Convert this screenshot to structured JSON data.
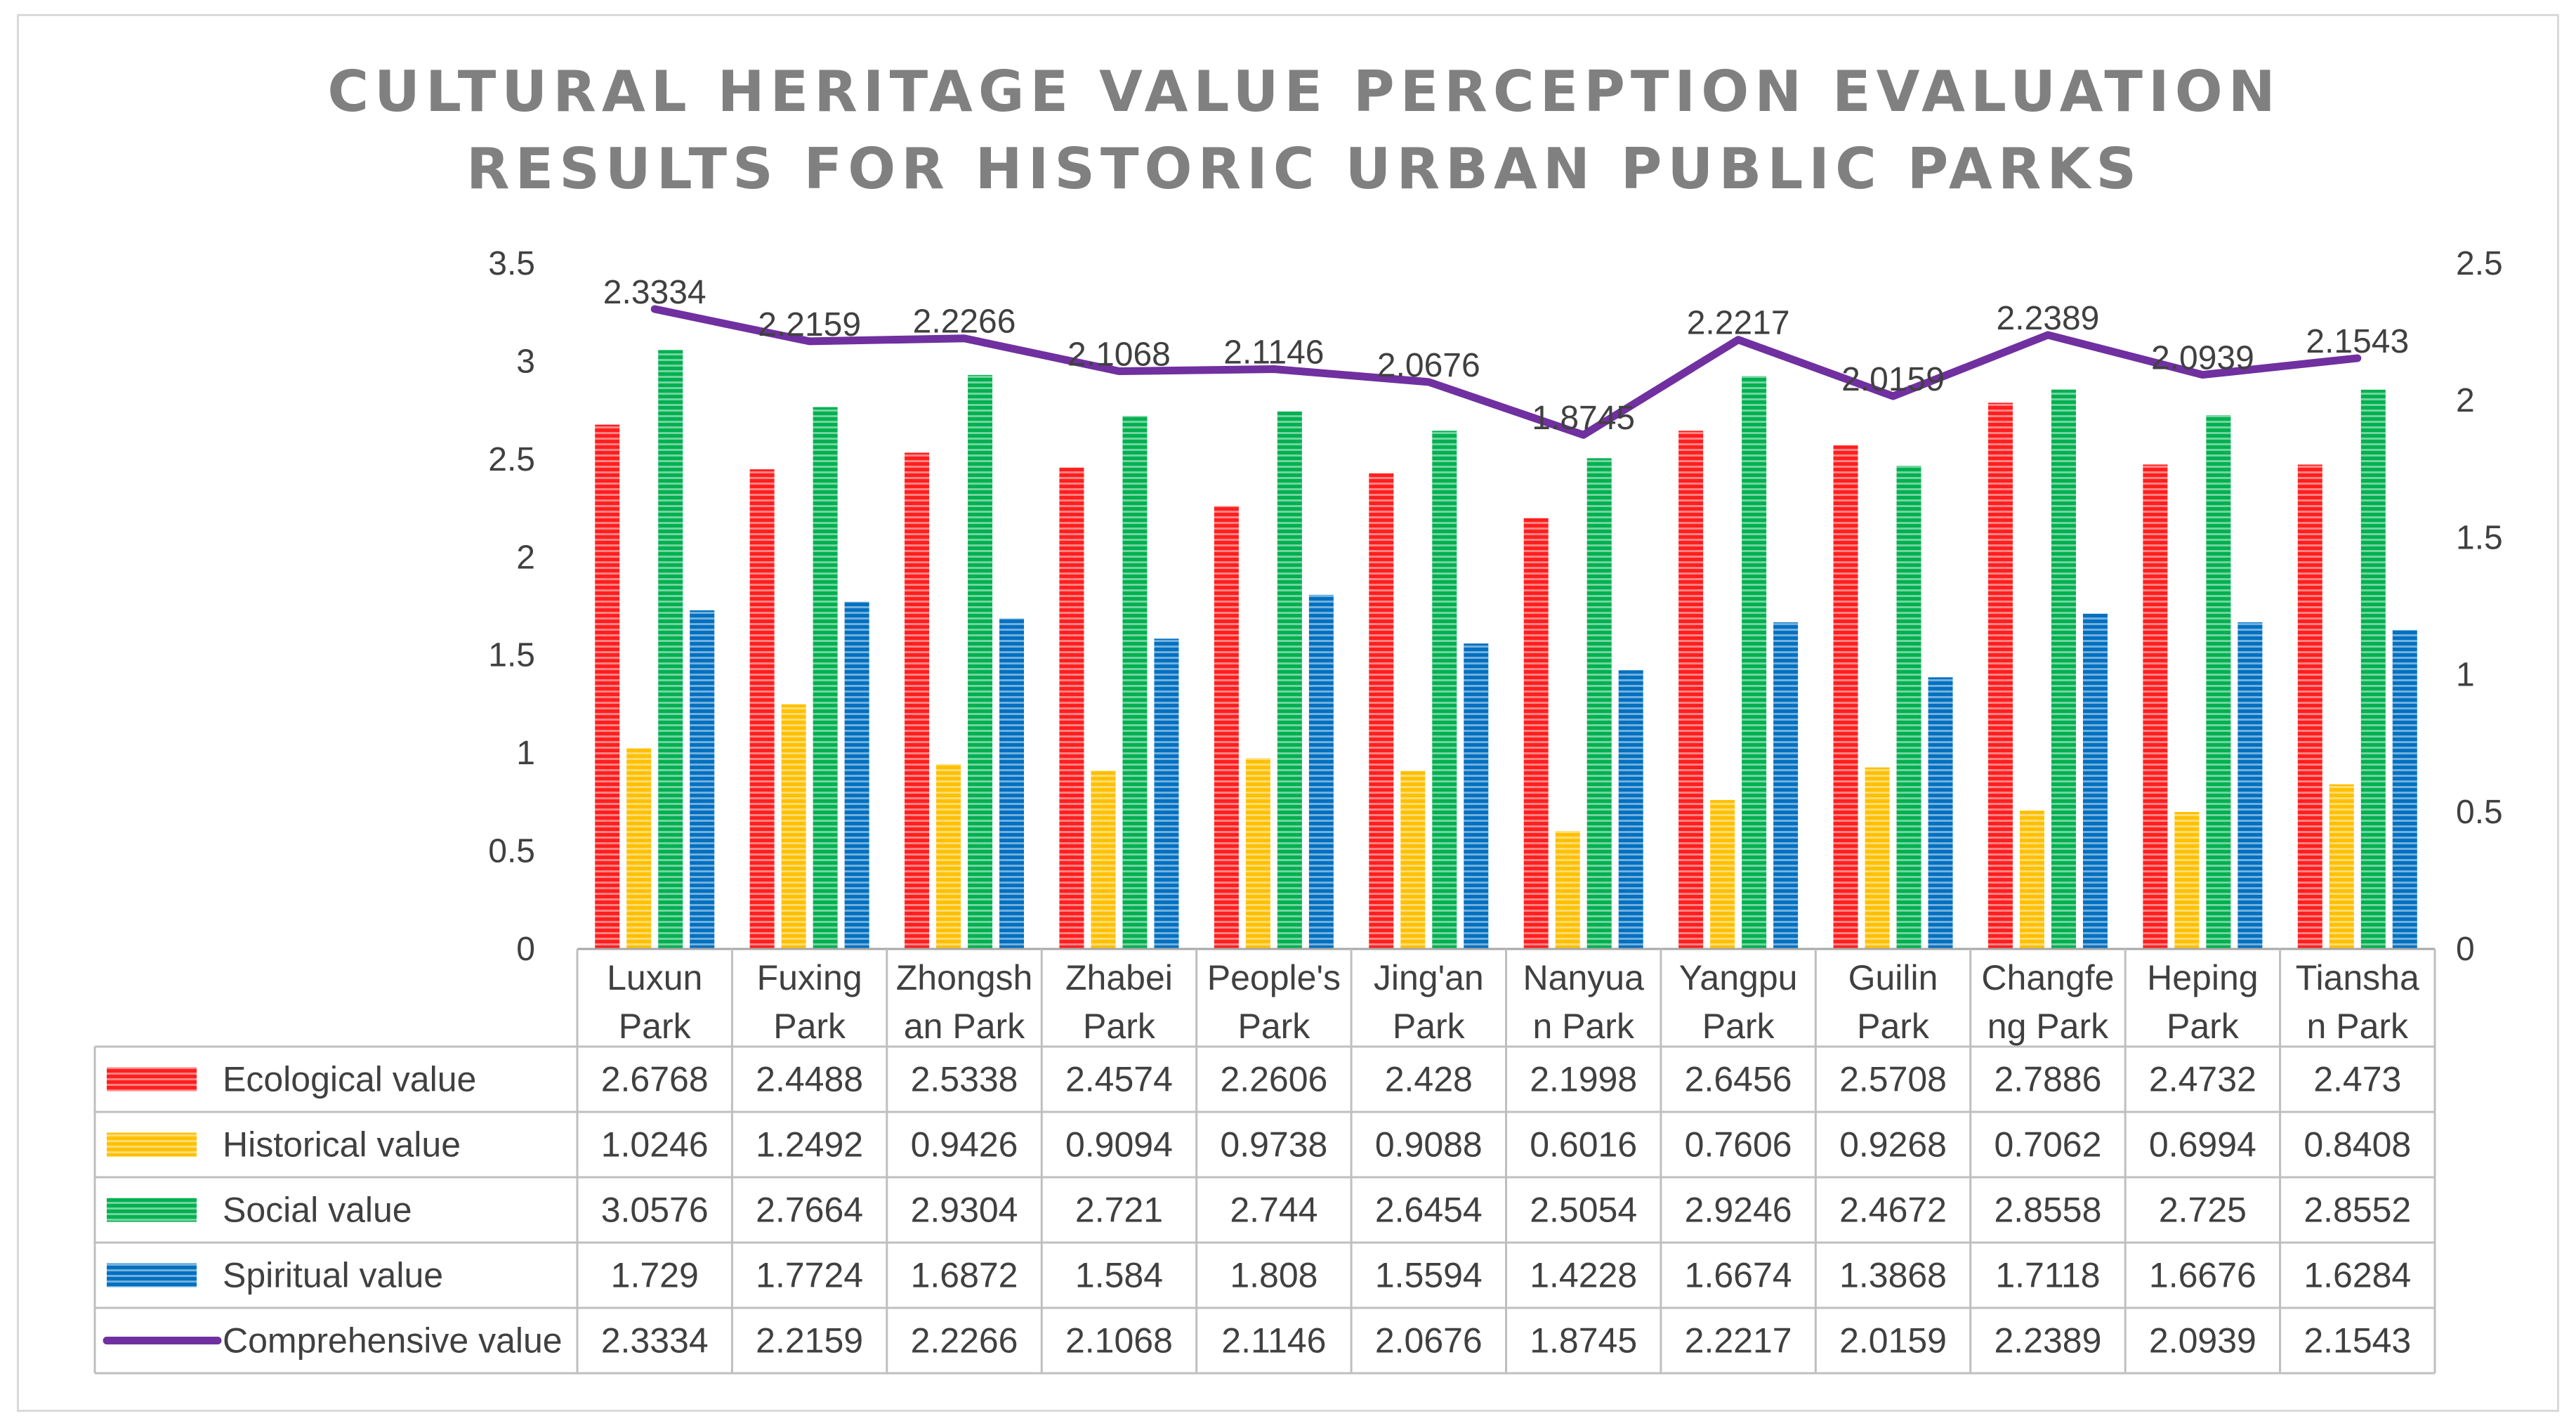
{
  "chart_data": {
    "type": "bar",
    "title": [
      "CULTURAL HERITAGE VALUE PERCEPTION EVALUATION",
      "RESULTS FOR HISTORIC URBAN PUBLIC PARKS"
    ],
    "categories": [
      [
        "Luxun",
        "Park"
      ],
      [
        "Fuxing",
        "Park"
      ],
      [
        "Zhongsh",
        "an Park"
      ],
      [
        "Zhabei",
        "Park"
      ],
      [
        "People's",
        "Park"
      ],
      [
        "Jing'an",
        "Park"
      ],
      [
        "Nanyua",
        "n Park"
      ],
      [
        "Yangpu",
        "Park"
      ],
      [
        "Guilin",
        "Park"
      ],
      [
        "Changfe",
        "ng Park"
      ],
      [
        "Heping",
        "Park"
      ],
      [
        "Tiansha",
        "n Park"
      ]
    ],
    "series": [
      {
        "name": "Ecological value",
        "type": "bar",
        "color": "#ff1f1f",
        "axis": "left",
        "values": [
          "2.6768",
          "2.4488",
          "2.5338",
          "2.4574",
          "2.2606",
          "2.428",
          "2.1998",
          "2.6456",
          "2.5708",
          "2.7886",
          "2.4732",
          "2.473"
        ]
      },
      {
        "name": "Historical value",
        "type": "bar",
        "color": "#ffc000",
        "axis": "left",
        "values": [
          "1.0246",
          "1.2492",
          "0.9426",
          "0.9094",
          "0.9738",
          "0.9088",
          "0.6016",
          "0.7606",
          "0.9268",
          "0.7062",
          "0.6994",
          "0.8408"
        ]
      },
      {
        "name": " Social value",
        "type": "bar",
        "color": "#00b050",
        "axis": "left",
        "values": [
          "3.0576",
          "2.7664",
          "2.9304",
          "2.721",
          "2.744",
          "2.6454",
          "2.5054",
          "2.9246",
          "2.4672",
          "2.8558",
          "2.725",
          "2.8552"
        ]
      },
      {
        "name": "Spiritual value",
        "type": "bar",
        "color": "#0070c0",
        "axis": "left",
        "values": [
          "1.729",
          "1.7724",
          "1.6872",
          "1.584",
          "1.808",
          "1.5594",
          "1.4228",
          "1.6674",
          "1.3868",
          "1.7118",
          "1.6676",
          "1.6284"
        ]
      },
      {
        "name": "Comprehensive value",
        "type": "line",
        "color": "#7030a0",
        "axis": "right",
        "values": [
          "2.3334",
          "2.2159",
          "2.2266",
          "2.1068",
          "2.1146",
          "2.0676",
          "1.8745",
          "2.2217",
          "2.0159",
          "2.2389",
          "2.0939",
          "2.1543"
        ]
      }
    ],
    "y_left": {
      "min": 0,
      "max": 3.5,
      "ticks": [
        "0",
        "0.5",
        "1",
        "1.5",
        "2",
        "2.5",
        "3",
        "3.5"
      ]
    },
    "y_right": {
      "min": 0,
      "max": 2.5,
      "ticks": [
        "0",
        "0.5",
        "1",
        "1.5",
        "2",
        "2.5"
      ]
    },
    "grid": false,
    "legend": "data-table-left"
  }
}
